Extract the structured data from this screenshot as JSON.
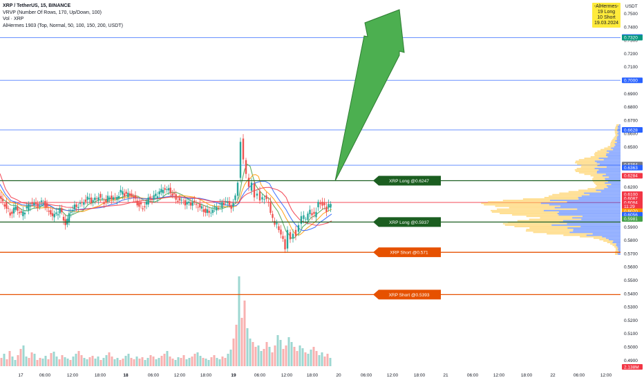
{
  "header": {
    "symbol": "XRP / TetherUS, 15, BINANCE",
    "indicators": [
      "VRVP (Number Of Rows, 170, Up/Down, 100)",
      "Vol · XRP",
      "AlHermes 1903 (Top, Normal, 50, 100, 150, 200, USDT)"
    ],
    "currency": "USDT"
  },
  "hermes_box": {
    "lines": [
      "-AlHermes-",
      "19 Long",
      "10 Short",
      "19.03.2024"
    ]
  },
  "colors": {
    "up": "#26a69a",
    "down": "#ef5350",
    "long_level": "#1b5e20",
    "short_level": "#e65100",
    "arrow": "#4caf50",
    "hline": "#2962ff",
    "red_line": "#f23645",
    "vrvp_up": "#2962ff",
    "vrvp_down": "#ffd166"
  },
  "chart_data": {
    "type": "candlestick",
    "y_axis": {
      "min": 0.485,
      "max": 0.765,
      "ticks": [
        "0.7500",
        "0.7400",
        "0.7300",
        "0.7200",
        "0.7100",
        "0.7000",
        "0.6900",
        "0.6800",
        "0.6700",
        "0.6600",
        "0.6500",
        "0.6200",
        "0.5900",
        "0.5800",
        "0.5700",
        "0.5600",
        "0.5500",
        "0.5400",
        "0.5300",
        "0.5200",
        "0.5100",
        "0.5000",
        "0.4900"
      ]
    },
    "x_axis": {
      "ticks": [
        "17",
        "06:00",
        "12:00",
        "18:00",
        "18",
        "06:00",
        "12:00",
        "18:00",
        "19",
        "06:00",
        "12:00",
        "18:00",
        "20",
        "06:00",
        "12:00",
        "18:00",
        "21",
        "06:00",
        "12:00",
        "18:00",
        "22",
        "06:00",
        "12:00"
      ]
    },
    "horizontal_lines": [
      {
        "price": 0.732,
        "kind": "blue"
      },
      {
        "price": 0.7,
        "kind": "blue"
      },
      {
        "price": 0.6628,
        "kind": "blue"
      },
      {
        "price": 0.6363,
        "kind": "blue"
      },
      {
        "price": 0.6084,
        "kind": "red"
      }
    ],
    "trade_levels": [
      {
        "label": "XRP Long @0.6247",
        "price": 0.6247,
        "kind": "long"
      },
      {
        "label": "XRP Long @0.5937",
        "price": 0.5937,
        "kind": "long"
      },
      {
        "label": "XRP Short @0.571",
        "price": 0.571,
        "kind": "short"
      },
      {
        "label": "XRP Short @0.5393",
        "price": 0.5393,
        "kind": "short"
      }
    ],
    "price_tags": [
      {
        "text": "0.7324",
        "price": 0.7324,
        "color": "#2962ff"
      },
      {
        "text": "0.7320",
        "price": 0.732,
        "color": "#089981"
      },
      {
        "text": "0.7000",
        "price": 0.7,
        "color": "#2962ff"
      },
      {
        "text": "0.6628",
        "price": 0.6628,
        "color": "#2962ff"
      },
      {
        "text": "0.6364",
        "price": 0.6368,
        "color": "#787b86"
      },
      {
        "text": "0.6363",
        "price": 0.6345,
        "color": "#2962ff"
      },
      {
        "text": "0.6284",
        "price": 0.6284,
        "color": "#f23645"
      },
      {
        "text": "0.6100",
        "price": 0.6146,
        "color": "#f23645"
      },
      {
        "text": "0.6087",
        "price": 0.6113,
        "color": "#f23645"
      },
      {
        "text": "0.6084",
        "price": 0.6084,
        "color": "#f23645"
      },
      {
        "text": "11:29",
        "price": 0.6055,
        "color": "#f23645"
      },
      {
        "text": "0.6070",
        "price": 0.6018,
        "color": "#ff9800"
      },
      {
        "text": "0.6056",
        "price": 0.5991,
        "color": "#2962ff"
      },
      {
        "text": "0.5981",
        "price": 0.596,
        "color": "#43a047"
      }
    ],
    "volume_tag": "2.138M",
    "close_path": [
      [
        0,
        0.612
      ],
      [
        8,
        0.607
      ],
      [
        16,
        0.6
      ],
      [
        24,
        0.605
      ],
      [
        32,
        0.599
      ],
      [
        40,
        0.604
      ],
      [
        48,
        0.608
      ],
      [
        56,
        0.606
      ],
      [
        64,
        0.609
      ],
      [
        72,
        0.601
      ],
      [
        80,
        0.598
      ],
      [
        88,
        0.603
      ],
      [
        96,
        0.592
      ],
      [
        104,
        0.603
      ],
      [
        112,
        0.606
      ],
      [
        120,
        0.608
      ],
      [
        128,
        0.611
      ],
      [
        136,
        0.609
      ],
      [
        144,
        0.613
      ],
      [
        152,
        0.609
      ],
      [
        160,
        0.613
      ],
      [
        168,
        0.611
      ],
      [
        176,
        0.616
      ],
      [
        184,
        0.614
      ],
      [
        192,
        0.614
      ],
      [
        200,
        0.608
      ],
      [
        208,
        0.604
      ],
      [
        216,
        0.611
      ],
      [
        224,
        0.612
      ],
      [
        232,
        0.616
      ],
      [
        240,
        0.619
      ],
      [
        248,
        0.617
      ],
      [
        256,
        0.611
      ],
      [
        264,
        0.609
      ],
      [
        272,
        0.607
      ],
      [
        280,
        0.608
      ],
      [
        288,
        0.606
      ],
      [
        296,
        0.603
      ],
      [
        304,
        0.601
      ],
      [
        312,
        0.604
      ],
      [
        320,
        0.606
      ],
      [
        328,
        0.609
      ],
      [
        336,
        0.605
      ],
      [
        342,
        0.612
      ],
      [
        346,
        0.625
      ],
      [
        350,
        0.655
      ],
      [
        354,
        0.64
      ],
      [
        358,
        0.628
      ],
      [
        362,
        0.619
      ],
      [
        366,
        0.624
      ],
      [
        370,
        0.614
      ],
      [
        374,
        0.616
      ],
      [
        378,
        0.609
      ],
      [
        384,
        0.612
      ],
      [
        390,
        0.608
      ],
      [
        396,
        0.595
      ],
      [
        402,
        0.592
      ],
      [
        408,
        0.585
      ],
      [
        414,
        0.575
      ],
      [
        418,
        0.586
      ],
      [
        422,
        0.58
      ],
      [
        426,
        0.586
      ],
      [
        430,
        0.585
      ],
      [
        434,
        0.592
      ],
      [
        438,
        0.597
      ],
      [
        444,
        0.597
      ],
      [
        450,
        0.602
      ],
      [
        456,
        0.598
      ],
      [
        462,
        0.608
      ],
      [
        468,
        0.607
      ],
      [
        474,
        0.603
      ],
      [
        480,
        0.608
      ]
    ],
    "volume_heights": [
      12,
      18,
      10,
      22,
      14,
      9,
      16,
      25,
      30,
      14,
      12,
      20,
      18,
      9,
      12,
      11,
      15,
      10,
      19,
      21,
      14,
      10,
      16,
      13,
      11,
      9,
      14,
      18,
      22,
      16,
      12,
      10,
      13,
      15,
      11,
      14,
      9,
      12,
      16,
      20,
      14,
      10,
      12,
      9,
      11,
      15,
      18,
      12,
      10,
      14,
      11,
      13,
      9,
      12,
      16,
      14,
      10,
      12,
      15,
      18,
      22,
      14,
      11,
      9,
      13,
      12,
      16,
      10,
      12,
      14,
      18,
      20,
      15,
      12,
      11,
      9,
      13,
      16,
      12,
      10,
      14,
      12,
      18,
      24,
      40,
      60,
      130,
      70,
      95,
      55,
      40,
      35,
      28,
      30,
      22,
      25,
      35,
      28,
      20,
      30,
      45,
      38,
      25,
      30,
      42,
      35,
      28,
      22,
      30,
      26,
      20,
      18,
      24,
      28,
      22,
      16,
      20,
      14,
      18,
      12
    ],
    "vrvp": {
      "high": 0.667,
      "low": 0.569,
      "rows": 90
    }
  }
}
